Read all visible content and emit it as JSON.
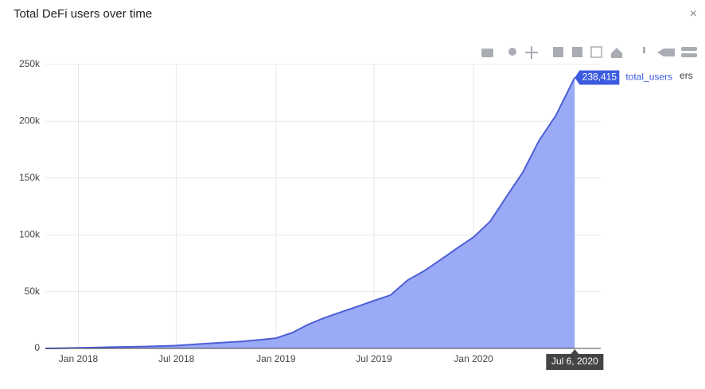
{
  "chart_data": {
    "type": "area",
    "title": "Total DeFi users over time",
    "close_label": "×",
    "x": [
      "2017-11",
      "2017-12",
      "2018-01",
      "2018-02",
      "2018-03",
      "2018-04",
      "2018-05",
      "2018-06",
      "2018-07",
      "2018-08",
      "2018-09",
      "2018-10",
      "2018-11",
      "2018-12",
      "2019-01",
      "2019-02",
      "2019-03",
      "2019-04",
      "2019-05",
      "2019-06",
      "2019-07",
      "2019-08",
      "2019-09",
      "2019-10",
      "2019-11",
      "2019-12",
      "2020-01",
      "2020-02",
      "2020-03",
      "2020-04",
      "2020-05",
      "2020-06",
      "2020-07-06"
    ],
    "series": [
      {
        "name": "total_users",
        "color": "#4e5fd6",
        "fill": "#9aaaf6",
        "values": [
          0,
          200,
          500,
          800,
          1100,
          1400,
          1700,
          2000,
          2500,
          3500,
          4500,
          5300,
          6200,
          7500,
          9000,
          14000,
          21000,
          27000,
          32000,
          37000,
          42000,
          47000,
          60000,
          68000,
          78000,
          88000,
          98000,
          112000,
          133000,
          155000,
          183000,
          205000,
          238415
        ]
      }
    ],
    "xlim": [
      "2017-11",
      "2020-08-23"
    ],
    "xticks": [
      {
        "value": "2018-01",
        "label": "Jan 2018"
      },
      {
        "value": "2018-07",
        "label": "Jul 2018"
      },
      {
        "value": "2019-01",
        "label": "Jan 2019"
      },
      {
        "value": "2019-07",
        "label": "Jul 2019"
      },
      {
        "value": "2020-01",
        "label": "Jan 2020"
      }
    ],
    "ylim": [
      0,
      250000
    ],
    "yticks": [
      0,
      {
        "value": 50000,
        "label": "50k"
      },
      {
        "value": 100000,
        "label": "100k"
      },
      {
        "value": 150000,
        "label": "150k"
      },
      {
        "value": 200000,
        "label": "200k"
      },
      {
        "value": 250000,
        "label": "250k"
      }
    ],
    "grid": true,
    "hover": {
      "x_label": "Jul 6, 2020",
      "value_label": "238,415",
      "series_label": "total_users"
    }
  }
}
